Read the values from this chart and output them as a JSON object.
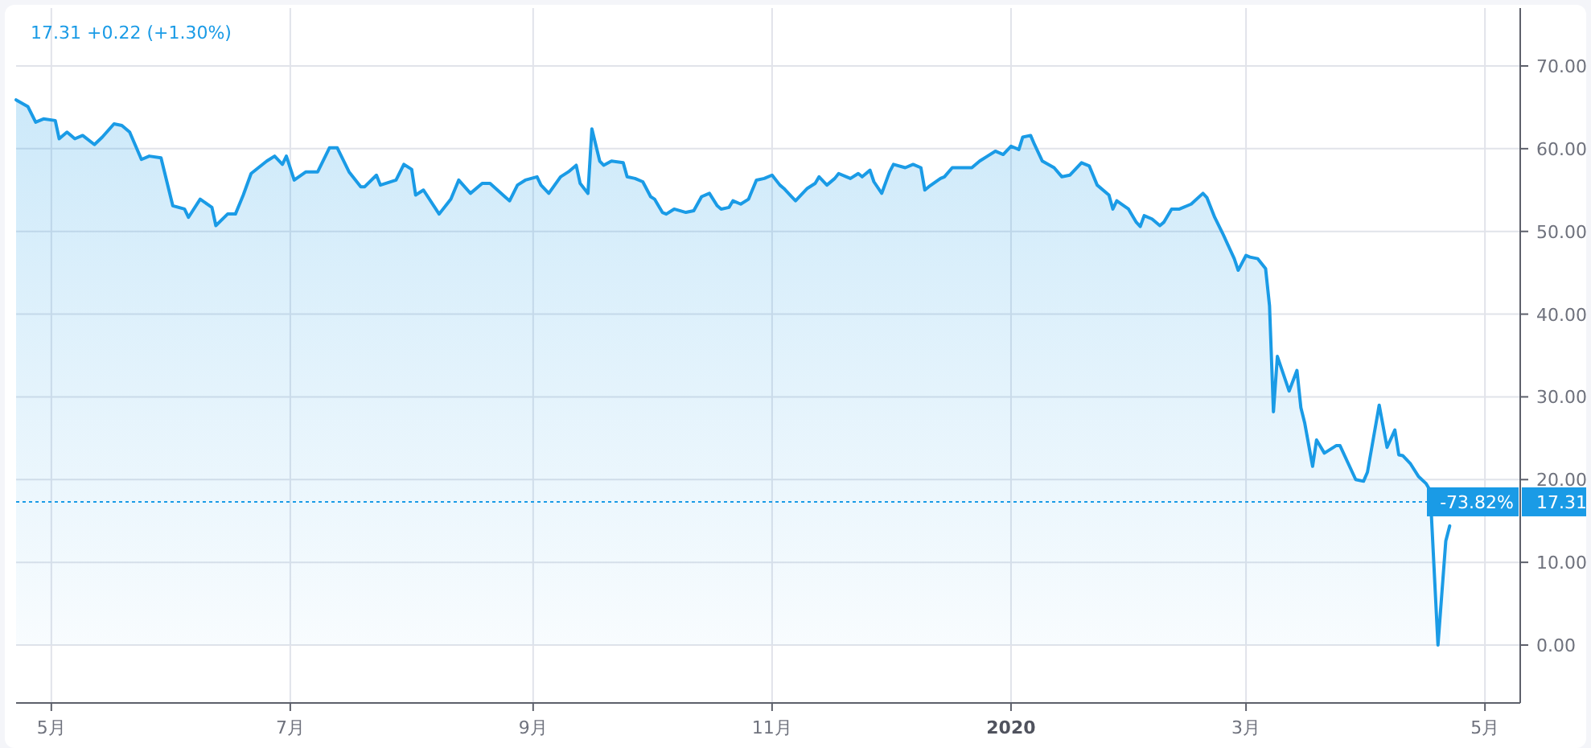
{
  "chart_data": {
    "type": "area",
    "title": "17.31 +0.22 (+1.30%)",
    "x": [
      "2019-04-22",
      "2019-04-25",
      "2019-04-27",
      "2019-04-29",
      "2019-05-02",
      "2019-05-03",
      "2019-05-05",
      "2019-05-07",
      "2019-05-09",
      "2019-05-12",
      "2019-05-14",
      "2019-05-17",
      "2019-05-19",
      "2019-05-21",
      "2019-05-24",
      "2019-05-26",
      "2019-05-29",
      "2019-06-01",
      "2019-06-04",
      "2019-06-05",
      "2019-06-08",
      "2019-06-11",
      "2019-06-12",
      "2019-06-15",
      "2019-06-17",
      "2019-06-19",
      "2019-06-21",
      "2019-06-25",
      "2019-06-27",
      "2019-06-29",
      "2019-06-30",
      "2019-07-02",
      "2019-07-05",
      "2019-07-08",
      "2019-07-11",
      "2019-07-13",
      "2019-07-16",
      "2019-07-19",
      "2019-07-20",
      "2019-07-23",
      "2019-07-24",
      "2019-07-28",
      "2019-07-30",
      "2019-08-01",
      "2019-08-02",
      "2019-08-04",
      "2019-08-08",
      "2019-08-11",
      "2019-08-13",
      "2019-08-16",
      "2019-08-19",
      "2019-08-21",
      "2019-08-25",
      "2019-08-26",
      "2019-08-28",
      "2019-08-30",
      "2019-09-02",
      "2019-09-03",
      "2019-09-05",
      "2019-09-08",
      "2019-09-10",
      "2019-09-12",
      "2019-09-13",
      "2019-09-15",
      "2019-09-16",
      "2019-09-18",
      "2019-09-19",
      "2019-09-21",
      "2019-09-24",
      "2019-09-25",
      "2019-09-27",
      "2019-09-29",
      "2019-10-01",
      "2019-10-02",
      "2019-10-04",
      "2019-10-05",
      "2019-10-07",
      "2019-10-10",
      "2019-10-12",
      "2019-10-14",
      "2019-10-16",
      "2019-10-18",
      "2019-10-19",
      "2019-10-21",
      "2019-10-22",
      "2019-10-24",
      "2019-10-26",
      "2019-10-28",
      "2019-10-30",
      "2019-11-01",
      "2019-11-03",
      "2019-11-04",
      "2019-11-06",
      "2019-11-07",
      "2019-11-10",
      "2019-11-12",
      "2019-11-13",
      "2019-11-15",
      "2019-11-17",
      "2019-11-18",
      "2019-11-20",
      "2019-11-21",
      "2019-11-23",
      "2019-11-24",
      "2019-11-26",
      "2019-11-27",
      "2019-11-29",
      "2019-12-01",
      "2019-12-02",
      "2019-12-05",
      "2019-12-07",
      "2019-12-09",
      "2019-12-10",
      "2019-12-11",
      "2019-12-14",
      "2019-12-15",
      "2019-12-17",
      "2019-12-19",
      "2019-12-22",
      "2019-12-24",
      "2019-12-26",
      "2019-12-28",
      "2019-12-30",
      "2020-01-01",
      "2020-01-03",
      "2020-01-04",
      "2020-01-06",
      "2020-01-07",
      "2020-01-09",
      "2020-01-12",
      "2020-01-14",
      "2020-01-16",
      "2020-01-19",
      "2020-01-21",
      "2020-01-23",
      "2020-01-26",
      "2020-01-27",
      "2020-01-28",
      "2020-01-31",
      "2020-02-02",
      "2020-02-03",
      "2020-02-04",
      "2020-02-06",
      "2020-02-08",
      "2020-02-09",
      "2020-02-11",
      "2020-02-13",
      "2020-02-16",
      "2020-02-19",
      "2020-02-20",
      "2020-02-22",
      "2020-02-24",
      "2020-02-27",
      "2020-02-28",
      "2020-03-01",
      "2020-03-02",
      "2020-03-04",
      "2020-03-06",
      "2020-03-07",
      "2020-03-08",
      "2020-03-09",
      "2020-03-12",
      "2020-03-14",
      "2020-03-15",
      "2020-03-16",
      "2020-03-18",
      "2020-03-19",
      "2020-03-21",
      "2020-03-24",
      "2020-03-25",
      "2020-03-29",
      "2020-03-31",
      "2020-04-01",
      "2020-04-04",
      "2020-04-06",
      "2020-04-08",
      "2020-04-09",
      "2020-04-10",
      "2020-04-12",
      "2020-04-14",
      "2020-04-16",
      "2020-04-17",
      "2020-04-19",
      "2020-04-21",
      "2020-04-22"
    ],
    "series": [
      {
        "color": "#1a9be6",
        "values": [
          65.9,
          65.1,
          63.2,
          63.6,
          63.4,
          61.2,
          62.0,
          61.2,
          61.6,
          60.5,
          61.4,
          63.0,
          62.8,
          62.0,
          58.7,
          59.1,
          58.9,
          53.1,
          52.7,
          51.7,
          53.9,
          52.9,
          50.7,
          52.1,
          52.1,
          54.4,
          57.0,
          58.5,
          59.1,
          58.1,
          59.1,
          56.2,
          57.2,
          57.2,
          60.1,
          60.1,
          57.2,
          55.4,
          55.4,
          56.8,
          55.6,
          56.2,
          58.1,
          57.5,
          54.4,
          55.0,
          52.1,
          53.9,
          56.2,
          54.6,
          55.8,
          55.8,
          54.1,
          53.7,
          55.6,
          56.2,
          56.6,
          55.6,
          54.6,
          56.6,
          57.2,
          58.0,
          55.8,
          54.6,
          62.4,
          58.5,
          58.0,
          58.5,
          58.3,
          56.6,
          56.4,
          56.0,
          54.2,
          53.9,
          52.3,
          52.1,
          52.7,
          52.3,
          52.5,
          54.2,
          54.6,
          53.1,
          52.7,
          52.9,
          53.7,
          53.3,
          53.9,
          56.2,
          56.4,
          56.8,
          55.6,
          55.2,
          54.2,
          53.7,
          55.2,
          55.8,
          56.6,
          55.6,
          56.4,
          57.0,
          56.6,
          56.4,
          57.0,
          56.6,
          57.4,
          56.0,
          54.6,
          57.2,
          58.1,
          57.7,
          58.1,
          57.7,
          55.0,
          55.4,
          56.4,
          56.6,
          57.7,
          57.7,
          57.7,
          58.5,
          59.1,
          59.7,
          59.3,
          60.3,
          59.9,
          61.4,
          61.6,
          60.5,
          58.5,
          57.7,
          56.6,
          56.8,
          58.3,
          57.9,
          55.6,
          54.4,
          52.7,
          53.7,
          52.7,
          51.1,
          50.6,
          51.9,
          51.5,
          50.7,
          51.1,
          52.7,
          52.7,
          53.3,
          54.6,
          54.1,
          51.7,
          49.8,
          46.7,
          45.3,
          47.1,
          46.9,
          46.7,
          45.5,
          41.0,
          28.2,
          34.9,
          30.7,
          33.2,
          28.7,
          26.8,
          21.6,
          24.8,
          23.2,
          24.1,
          24.1,
          20.0,
          19.8,
          20.9,
          29.0,
          23.9,
          26.0,
          23.0,
          22.9,
          21.9,
          20.4,
          19.5,
          18.7,
          0,
          12.6,
          14.4
        ]
      }
    ],
    "xlim": [
      "2019-04-22",
      "2020-05-10"
    ],
    "xticks": [
      {
        "value": "2019-05-01",
        "label": "5月"
      },
      {
        "value": "2019-07-01",
        "label": "7月"
      },
      {
        "value": "2019-09-01",
        "label": "9月"
      },
      {
        "value": "2019-11-01",
        "label": "11月"
      },
      {
        "value": "2020-01-01",
        "label": "2020"
      },
      {
        "value": "2020-03-01",
        "label": "3月"
      },
      {
        "value": "2020-05-01",
        "label": "5月"
      }
    ],
    "ylim": [
      -7,
      77
    ],
    "yticks": [
      {
        "value": 0,
        "label": "0.00"
      },
      {
        "value": 10,
        "label": "10.00"
      },
      {
        "value": 20,
        "label": "20.00"
      },
      {
        "value": 30,
        "label": "30.00"
      },
      {
        "value": 40,
        "label": "40.00"
      },
      {
        "value": 50,
        "label": "50.00"
      },
      {
        "value": 60,
        "label": "60.00"
      },
      {
        "value": 70,
        "label": "70.00"
      }
    ],
    "ref_lines": [
      {
        "axis": "y",
        "value": 17.31,
        "label": "17.31",
        "color": "#1a9be6",
        "line_style": "dotted"
      }
    ],
    "annotations": [
      "-73.82%"
    ],
    "grid": true,
    "marker": "none",
    "line_style": "solid"
  }
}
